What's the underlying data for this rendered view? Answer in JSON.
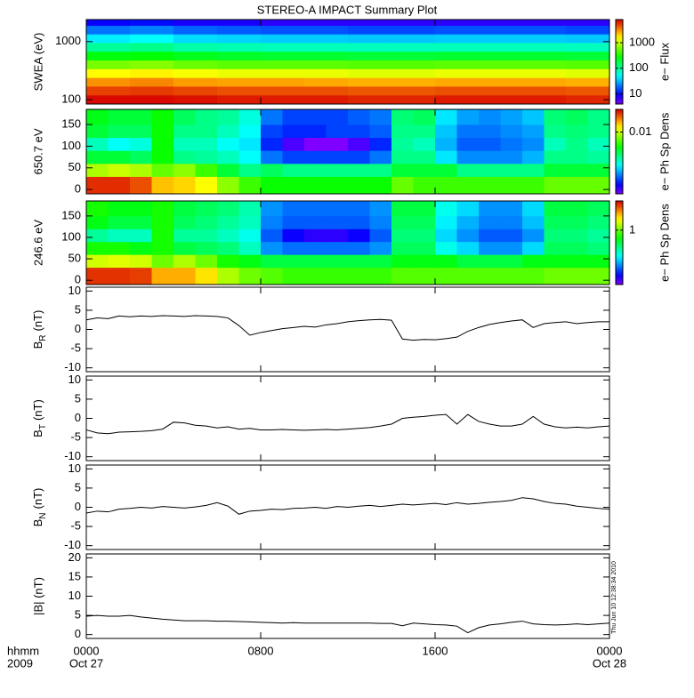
{
  "x_axis_label": "hhmm",
  "year_label": "2009",
  "timestamp": "Thu Jun 10 12:38:34 2010",
  "chart_data": [
    {
      "type": "heatmap",
      "title": "STEREO-A IMPACT Summary Plot",
      "ylabel": "SWEA (eV)",
      "ylog": true,
      "ylim": [
        84,
        2400
      ],
      "yticks": [
        100,
        1000
      ],
      "xlim": [
        0,
        24
      ],
      "colormap": "rainbow",
      "x_edges": [
        0,
        2,
        4,
        6,
        8,
        10,
        12,
        14,
        16,
        18,
        20,
        22,
        24
      ],
      "y_edges": [
        84,
        120,
        170,
        240,
        340,
        480,
        680,
        960,
        1350,
        1900,
        2400
      ],
      "z": [
        [
          7500,
          7500,
          7000,
          6500,
          6500,
          6500,
          6000,
          6000,
          6500,
          6500,
          6500,
          6000
        ],
        [
          5000,
          5200,
          4800,
          4500,
          4500,
          4500,
          4300,
          4300,
          4500,
          4500,
          4500,
          4300
        ],
        [
          3000,
          3200,
          2800,
          2700,
          2700,
          2600,
          2500,
          2500,
          2600,
          2600,
          2600,
          2500
        ],
        [
          1500,
          1600,
          1400,
          1300,
          1300,
          1300,
          1200,
          1200,
          1300,
          1300,
          1300,
          1200
        ],
        [
          600,
          650,
          550,
          500,
          500,
          500,
          480,
          480,
          500,
          500,
          500,
          480
        ],
        [
          250,
          270,
          230,
          210,
          200,
          200,
          190,
          190,
          200,
          200,
          200,
          190
        ],
        [
          100,
          110,
          90,
          85,
          80,
          80,
          78,
          78,
          80,
          80,
          80,
          78
        ],
        [
          45,
          50,
          40,
          38,
          36,
          36,
          35,
          35,
          36,
          36,
          36,
          35
        ],
        [
          20,
          22,
          18,
          17,
          16,
          16,
          15,
          15,
          16,
          16,
          16,
          15
        ],
        [
          9,
          10,
          8,
          8,
          7,
          7,
          7,
          7,
          7,
          7,
          7,
          7
        ]
      ],
      "colorbar": {
        "label": "e− Flux",
        "log": true,
        "lim": [
          4,
          8000
        ],
        "ticks": [
          10,
          100,
          1000
        ]
      }
    },
    {
      "type": "heatmap",
      "ylabel": "650.7 eV",
      "ylim": [
        -10,
        185
      ],
      "yticks": [
        0,
        50,
        100,
        150
      ],
      "xlim": [
        0,
        24
      ],
      "colormap": "rainbow",
      "x_edges": [
        0,
        1,
        2,
        3,
        4,
        5,
        6,
        7,
        8,
        9,
        10,
        11,
        12,
        13,
        14,
        15,
        16,
        17,
        18,
        19,
        20,
        21,
        22,
        23,
        24
      ],
      "y_edges": [
        -10,
        30,
        60,
        90,
        120,
        150,
        185
      ],
      "z": [
        [
          0.025,
          0.025,
          0.022,
          0.015,
          0.014,
          0.012,
          0.008,
          0.006,
          0.005,
          0.005,
          0.005,
          0.005,
          0.005,
          0.005,
          0.007,
          0.006,
          0.006,
          0.006,
          0.006,
          0.006,
          0.006,
          0.007,
          0.007,
          0.007
        ],
        [
          0.009,
          0.01,
          0.009,
          0.007,
          0.008,
          0.006,
          0.004,
          0.003,
          0.0035,
          0.003,
          0.003,
          0.003,
          0.003,
          0.003,
          0.004,
          0.004,
          0.004,
          0.003,
          0.003,
          0.003,
          0.003,
          0.004,
          0.004,
          0.004
        ],
        [
          0.004,
          0.004,
          0.0035,
          0.005,
          0.003,
          0.0028,
          0.0025,
          0.002,
          0.0012,
          0.001,
          0.001,
          0.001,
          0.001,
          0.0012,
          0.003,
          0.003,
          0.0018,
          0.0013,
          0.0013,
          0.0013,
          0.0015,
          0.003,
          0.003,
          0.0028
        ],
        [
          0.0025,
          0.002,
          0.0022,
          0.005,
          0.0025,
          0.0025,
          0.002,
          0.0018,
          0.0009,
          0.0006,
          0.0005,
          0.0005,
          0.0006,
          0.0009,
          0.0028,
          0.0025,
          0.0015,
          0.0011,
          0.0011,
          0.0012,
          0.0013,
          0.0025,
          0.003,
          0.0025
        ],
        [
          0.004,
          0.0035,
          0.0035,
          0.005,
          0.003,
          0.003,
          0.0025,
          0.002,
          0.001,
          0.0009,
          0.0009,
          0.001,
          0.001,
          0.0011,
          0.003,
          0.003,
          0.0016,
          0.0012,
          0.0012,
          0.0013,
          0.0014,
          0.003,
          0.0032,
          0.003
        ],
        [
          0.0045,
          0.004,
          0.004,
          0.005,
          0.0035,
          0.003,
          0.0028,
          0.0022,
          0.0012,
          0.001,
          0.001,
          0.001,
          0.0011,
          0.0012,
          0.0032,
          0.0035,
          0.0018,
          0.0014,
          0.0013,
          0.0014,
          0.0016,
          0.0032,
          0.0035,
          0.003
        ]
      ],
      "colorbar": {
        "label": "e− Ph Sp Dens",
        "log": true,
        "lim": [
          0.0005,
          0.03
        ],
        "ticks": [
          0.01
        ]
      }
    },
    {
      "type": "heatmap",
      "ylabel": "246.6 eV",
      "ylim": [
        -10,
        185
      ],
      "yticks": [
        0,
        50,
        100,
        150
      ],
      "xlim": [
        0,
        24
      ],
      "colormap": "rainbow",
      "x_edges": [
        0,
        1,
        2,
        3,
        4,
        5,
        6,
        7,
        8,
        9,
        10,
        11,
        12,
        13,
        14,
        15,
        16,
        17,
        18,
        19,
        20,
        21,
        22,
        23,
        24
      ],
      "y_edges": [
        -10,
        30,
        60,
        90,
        120,
        150,
        185
      ],
      "z": [
        [
          4,
          4,
          3.8,
          2.5,
          2.5,
          2,
          1.3,
          1,
          0.9,
          0.8,
          0.8,
          0.8,
          0.8,
          0.8,
          0.9,
          0.9,
          0.9,
          0.9,
          0.9,
          0.9,
          0.9,
          1,
          1,
          1
        ],
        [
          1.5,
          1.6,
          1.5,
          1,
          1.3,
          1,
          0.7,
          0.6,
          0.5,
          0.5,
          0.5,
          0.5,
          0.5,
          0.5,
          0.6,
          0.6,
          0.6,
          0.5,
          0.5,
          0.5,
          0.6,
          0.6,
          0.6,
          0.6
        ],
        [
          0.7,
          0.7,
          0.6,
          0.7,
          0.5,
          0.45,
          0.4,
          0.3,
          0.15,
          0.13,
          0.13,
          0.13,
          0.13,
          0.15,
          0.45,
          0.45,
          0.25,
          0.2,
          0.15,
          0.15,
          0.2,
          0.45,
          0.45,
          0.4
        ],
        [
          0.35,
          0.3,
          0.3,
          0.7,
          0.35,
          0.35,
          0.3,
          0.25,
          0.12,
          0.08,
          0.07,
          0.07,
          0.08,
          0.12,
          0.4,
          0.4,
          0.2,
          0.15,
          0.12,
          0.12,
          0.15,
          0.4,
          0.4,
          0.35
        ],
        [
          0.6,
          0.5,
          0.5,
          0.7,
          0.45,
          0.4,
          0.35,
          0.3,
          0.14,
          0.12,
          0.12,
          0.12,
          0.12,
          0.14,
          0.45,
          0.45,
          0.22,
          0.17,
          0.14,
          0.14,
          0.18,
          0.45,
          0.45,
          0.4
        ],
        [
          0.7,
          0.6,
          0.6,
          0.7,
          0.5,
          0.45,
          0.4,
          0.32,
          0.15,
          0.13,
          0.13,
          0.13,
          0.13,
          0.15,
          0.5,
          0.5,
          0.25,
          0.2,
          0.15,
          0.15,
          0.2,
          0.5,
          0.5,
          0.45
        ]
      ],
      "colorbar": {
        "label": "e− Ph Sp Dens",
        "log": true,
        "lim": [
          0.05,
          5
        ],
        "ticks": [
          1
        ]
      }
    },
    {
      "type": "line",
      "ylabel": {
        "text": "B",
        "sub": "R",
        "unit": "(nT)"
      },
      "ylim": [
        -11,
        11
      ],
      "yticks": [
        -10,
        -5,
        0,
        5,
        10
      ],
      "xlim": [
        0,
        24
      ],
      "color": "#000000",
      "x": [
        0,
        0.5,
        1,
        1.5,
        2,
        2.5,
        3,
        3.5,
        4,
        4.5,
        5,
        5.5,
        6,
        6.5,
        7,
        7.5,
        8,
        8.5,
        9,
        9.5,
        10,
        10.5,
        11,
        11.5,
        12,
        12.5,
        13,
        13.5,
        14,
        14.5,
        15,
        15.5,
        16,
        16.5,
        17,
        17.5,
        18,
        18.5,
        19,
        19.5,
        20,
        20.5,
        21,
        21.5,
        22,
        22.5,
        23,
        23.5,
        24
      ],
      "values": [
        2.5,
        3.0,
        2.8,
        3.5,
        3.3,
        3.5,
        3.4,
        3.6,
        3.5,
        3.4,
        3.6,
        3.5,
        3.4,
        3.0,
        1.0,
        -1.5,
        -0.8,
        -0.3,
        0.2,
        0.5,
        0.8,
        0.6,
        1.2,
        1.5,
        2.0,
        2.3,
        2.5,
        2.6,
        2.4,
        -2.5,
        -2.8,
        -2.6,
        -2.7,
        -2.4,
        -2.0,
        -0.5,
        0.5,
        1.3,
        1.8,
        2.2,
        2.5,
        0.5,
        1.5,
        1.8,
        2.0,
        1.5,
        1.8,
        2.0,
        2.0
      ]
    },
    {
      "type": "line",
      "ylabel": {
        "text": "B",
        "sub": "T",
        "unit": "(nT)"
      },
      "ylim": [
        -11,
        11
      ],
      "yticks": [
        -10,
        -5,
        0,
        5,
        10
      ],
      "xlim": [
        0,
        24
      ],
      "color": "#000000",
      "x": [
        0,
        0.5,
        1,
        1.5,
        2,
        2.5,
        3,
        3.5,
        4,
        4.5,
        5,
        5.5,
        6,
        6.5,
        7,
        7.5,
        8,
        8.5,
        9,
        9.5,
        10,
        10.5,
        11,
        11.5,
        12,
        12.5,
        13,
        13.5,
        14,
        14.5,
        15,
        15.5,
        16,
        16.5,
        17,
        17.5,
        18,
        18.5,
        19,
        19.5,
        20,
        20.5,
        21,
        21.5,
        22,
        22.5,
        23,
        23.5,
        24
      ],
      "values": [
        -3,
        -3.8,
        -4,
        -3.6,
        -3.5,
        -3.4,
        -3.2,
        -2.8,
        -1.0,
        -1.2,
        -1.8,
        -2.0,
        -2.5,
        -2.2,
        -2.8,
        -2.6,
        -3.0,
        -3.0,
        -2.9,
        -3.0,
        -3.1,
        -3.0,
        -2.9,
        -3.0,
        -2.8,
        -2.6,
        -2.4,
        -2.0,
        -1.5,
        0.0,
        0.3,
        0.5,
        0.8,
        1.0,
        -1.5,
        1.0,
        -0.8,
        -1.5,
        -2.0,
        -2.0,
        -1.5,
        0.5,
        -1.5,
        -2.2,
        -2.5,
        -2.3,
        -2.5,
        -2.2,
        -2.0
      ]
    },
    {
      "type": "line",
      "ylabel": {
        "text": "B",
        "sub": "N",
        "unit": "(nT)"
      },
      "ylim": [
        -11,
        11
      ],
      "yticks": [
        -10,
        -5,
        0,
        5,
        10
      ],
      "xlim": [
        0,
        24
      ],
      "color": "#000000",
      "x": [
        0,
        0.5,
        1,
        1.5,
        2,
        2.5,
        3,
        3.5,
        4,
        4.5,
        5,
        5.5,
        6,
        6.5,
        7,
        7.5,
        8,
        8.5,
        9,
        9.5,
        10,
        10.5,
        11,
        11.5,
        12,
        12.5,
        13,
        13.5,
        14,
        14.5,
        15,
        15.5,
        16,
        16.5,
        17,
        17.5,
        18,
        18.5,
        19,
        19.5,
        20,
        20.5,
        21,
        21.5,
        22,
        22.5,
        23,
        23.5,
        24
      ],
      "values": [
        -1.5,
        -1.0,
        -1.2,
        -0.5,
        -0.3,
        0.0,
        -0.2,
        0.2,
        0.0,
        -0.2,
        0.1,
        0.5,
        1.2,
        0.3,
        -1.8,
        -1.0,
        -0.8,
        -0.5,
        -0.6,
        -0.3,
        -0.2,
        0.0,
        -0.3,
        0.2,
        0.0,
        0.3,
        0.5,
        0.2,
        0.5,
        0.8,
        0.6,
        0.8,
        1.0,
        0.7,
        1.2,
        0.8,
        1.0,
        1.3,
        1.5,
        1.8,
        2.5,
        2.2,
        1.5,
        1.0,
        0.8,
        0.3,
        0.0,
        -0.3,
        -0.5
      ]
    },
    {
      "type": "line",
      "ylabel": "|B| (nT)",
      "ylim": [
        -1,
        21
      ],
      "yticks": [
        0,
        5,
        10,
        15,
        20
      ],
      "xlim": [
        0,
        24
      ],
      "color": "#000000",
      "x": [
        0,
        0.5,
        1,
        1.5,
        2,
        2.5,
        3,
        3.5,
        4,
        4.5,
        5,
        5.5,
        6,
        6.5,
        7,
        7.5,
        8,
        8.5,
        9,
        9.5,
        10,
        10.5,
        11,
        11.5,
        12,
        12.5,
        13,
        13.5,
        14,
        14.5,
        15,
        15.5,
        16,
        16.5,
        17,
        17.5,
        18,
        18.5,
        19,
        19.5,
        20,
        20.5,
        21,
        21.5,
        22,
        22.5,
        23,
        23.5,
        24
      ],
      "values": [
        4.8,
        5.0,
        4.8,
        4.8,
        5.0,
        4.6,
        4.3,
        4.0,
        3.8,
        3.6,
        3.6,
        3.6,
        3.5,
        3.5,
        3.4,
        3.3,
        3.2,
        3.1,
        3.0,
        3.1,
        3.0,
        3.0,
        3.0,
        3.0,
        3.0,
        3.0,
        3.0,
        2.9,
        2.9,
        2.3,
        3.0,
        2.8,
        2.6,
        2.5,
        2.2,
        0.5,
        1.8,
        2.5,
        2.8,
        3.2,
        3.5,
        2.8,
        2.6,
        2.5,
        2.6,
        2.8,
        2.6,
        2.8,
        3.0
      ],
      "xticks": [
        {
          "value": 0,
          "label": "0000"
        },
        {
          "value": 8,
          "label": "0800"
        },
        {
          "value": 16,
          "label": "1600"
        },
        {
          "value": 24,
          "label": "0000"
        }
      ],
      "date_ticks": [
        {
          "value": 0,
          "label": "Oct 27"
        },
        {
          "value": 24,
          "label": "Oct 28"
        }
      ]
    }
  ]
}
